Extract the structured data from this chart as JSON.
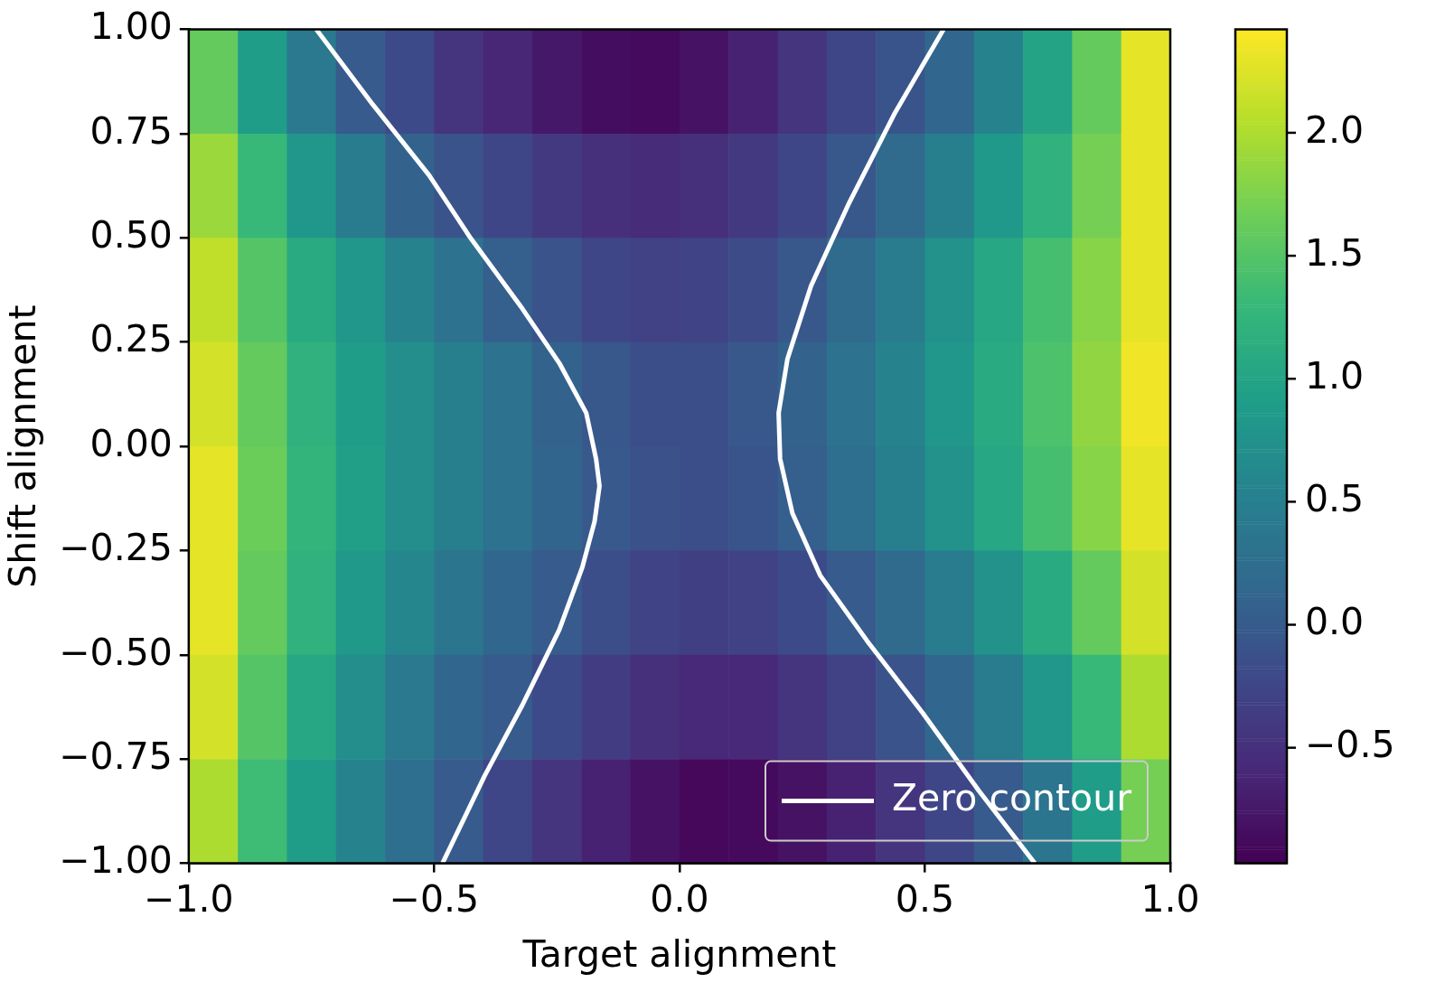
{
  "chart_data": {
    "type": "heatmap",
    "xlabel": "Target alignment",
    "ylabel": "Shift alignment",
    "x": [
      -0.95,
      -0.85,
      -0.75,
      -0.65,
      -0.55,
      -0.45,
      -0.35,
      -0.25,
      -0.15,
      -0.05,
      0.05,
      0.15,
      0.25,
      0.35,
      0.45,
      0.55,
      0.65,
      0.75,
      0.85,
      0.95
    ],
    "cells": [
      [
        1.6,
        0.9,
        0.4,
        0.0,
        -0.2,
        -0.45,
        -0.6,
        -0.75,
        -0.85,
        -0.88,
        -0.8,
        -0.65,
        -0.45,
        -0.25,
        -0.08,
        0.15,
        0.55,
        1.0,
        1.6,
        2.3
      ],
      [
        1.9,
        1.3,
        0.8,
        0.45,
        0.1,
        -0.1,
        -0.25,
        -0.4,
        -0.5,
        -0.55,
        -0.5,
        -0.4,
        -0.25,
        -0.05,
        0.2,
        0.5,
        0.85,
        1.2,
        1.7,
        2.3
      ],
      [
        2.1,
        1.5,
        1.1,
        0.8,
        0.55,
        0.3,
        0.05,
        -0.1,
        -0.25,
        -0.3,
        -0.28,
        -0.18,
        -0.03,
        0.2,
        0.45,
        0.75,
        1.05,
        1.4,
        1.8,
        2.3
      ],
      [
        2.2,
        1.6,
        1.2,
        0.9,
        0.7,
        0.5,
        0.3,
        0.1,
        -0.05,
        -0.15,
        -0.15,
        -0.05,
        0.1,
        0.3,
        0.55,
        0.8,
        1.1,
        1.45,
        1.85,
        2.35
      ],
      [
        2.3,
        1.65,
        1.25,
        0.95,
        0.7,
        0.5,
        0.3,
        0.12,
        -0.02,
        -0.12,
        -0.15,
        -0.08,
        0.05,
        0.25,
        0.5,
        0.75,
        1.05,
        1.4,
        1.8,
        2.3
      ],
      [
        2.3,
        1.6,
        1.2,
        0.85,
        0.6,
        0.35,
        0.15,
        0.0,
        -0.15,
        -0.28,
        -0.33,
        -0.3,
        -0.2,
        0.0,
        0.2,
        0.45,
        0.75,
        1.1,
        1.6,
        2.2
      ],
      [
        2.2,
        1.5,
        1.05,
        0.7,
        0.4,
        0.15,
        0.0,
        -0.2,
        -0.35,
        -0.5,
        -0.58,
        -0.58,
        -0.45,
        -0.3,
        -0.1,
        0.15,
        0.45,
        0.8,
        1.3,
        2.0
      ],
      [
        2.0,
        1.35,
        0.9,
        0.55,
        0.25,
        0.0,
        -0.25,
        -0.45,
        -0.65,
        -0.8,
        -0.9,
        -0.88,
        -0.8,
        -0.65,
        -0.45,
        -0.25,
        0.0,
        0.35,
        0.9,
        1.7
      ]
    ],
    "clim": [
      -0.97,
      2.42
    ],
    "cticks": [
      {
        "value": -0.5,
        "label": "−0.5"
      },
      {
        "value": 0,
        "label": "0.0"
      },
      {
        "value": 0.5,
        "label": "0.5"
      },
      {
        "value": 1,
        "label": "1.0"
      },
      {
        "value": 1.5,
        "label": "1.5"
      },
      {
        "value": 2,
        "label": "2.0"
      }
    ],
    "series": [
      {
        "type": "line",
        "name": "Zero contour",
        "color": "#ffffff",
        "x": [
          -0.74,
          -0.625,
          -0.51,
          -0.426,
          -0.32,
          -0.245,
          -0.19,
          -0.17,
          -0.163,
          -0.173,
          -0.198,
          -0.245,
          -0.32,
          -0.397,
          -0.483
        ],
        "values": [
          1.0,
          0.82,
          0.65,
          0.5,
          0.33,
          0.2,
          0.08,
          -0.03,
          -0.095,
          -0.18,
          -0.29,
          -0.44,
          -0.62,
          -0.79,
          -1.0
        ]
      },
      {
        "type": "line",
        "color": "#ffffff",
        "x": [
          0.538,
          0.439,
          0.344,
          0.268,
          0.22,
          0.202,
          0.205,
          0.23,
          0.287,
          0.382,
          0.496,
          0.61,
          0.724
        ],
        "values": [
          1.0,
          0.8,
          0.58,
          0.385,
          0.21,
          0.08,
          -0.03,
          -0.16,
          -0.31,
          -0.466,
          -0.64,
          -0.826,
          -1.0
        ]
      }
    ],
    "xlim": [
      -1,
      1
    ],
    "xticks": [
      {
        "value": -1,
        "label": "−1.0"
      },
      {
        "value": -0.5,
        "label": "−0.5"
      },
      {
        "value": 0,
        "label": "0.0"
      },
      {
        "value": 0.5,
        "label": "0.5"
      },
      {
        "value": 1,
        "label": "1.0"
      }
    ],
    "ylim": [
      -1,
      1
    ],
    "yticks": [
      {
        "value": -1,
        "label": "−1.00"
      },
      {
        "value": -0.75,
        "label": "−0.75"
      },
      {
        "value": -0.5,
        "label": "−0.50"
      },
      {
        "value": -0.25,
        "label": "−0.25"
      },
      {
        "value": 0,
        "label": "0.00"
      },
      {
        "value": 0.25,
        "label": "0.25"
      },
      {
        "value": 0.5,
        "label": "0.50"
      },
      {
        "value": 0.75,
        "label": "0.75"
      },
      {
        "value": 1,
        "label": "1.00"
      }
    ],
    "grid": false,
    "legend": "bottom right",
    "marker": "none",
    "line_style": "solid"
  }
}
